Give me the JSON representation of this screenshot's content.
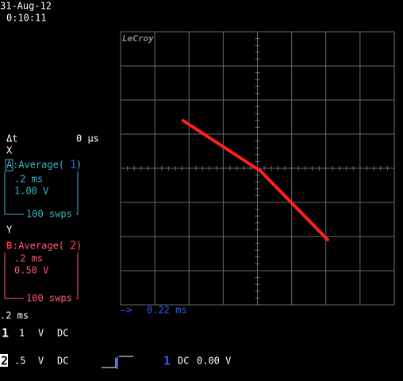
{
  "header": {
    "date": "31-Aug-12",
    "time": "0:10:11"
  },
  "brand": "LeCroy",
  "cursor": {
    "label": "Δt",
    "value": "0 μs"
  },
  "x_trace": {
    "axis": "X",
    "source": "A",
    "function": ":Average(",
    "channel": "1",
    "close": ")",
    "timebase": ".2 ms",
    "scale": "1.00 V",
    "sweeps": "100 swps"
  },
  "y_trace": {
    "axis": "Y",
    "source": "B",
    "function": ":Average(",
    "channel": "2",
    "close": ")",
    "timebase": ".2 ms",
    "scale": "0.50 V",
    "sweeps": "100 swps"
  },
  "delay": "0.22 ms",
  "footer": {
    "timebase": ".2 ms",
    "channel1": {
      "number": "1",
      "scale": "1",
      "unit": "V",
      "coupling": "DC"
    },
    "channel2": {
      "number": "2",
      "scale": ".5",
      "unit": "V",
      "coupling": "DC"
    },
    "trigger": {
      "source": "1",
      "coupling": "DC",
      "level": "0.00 V"
    }
  }
}
